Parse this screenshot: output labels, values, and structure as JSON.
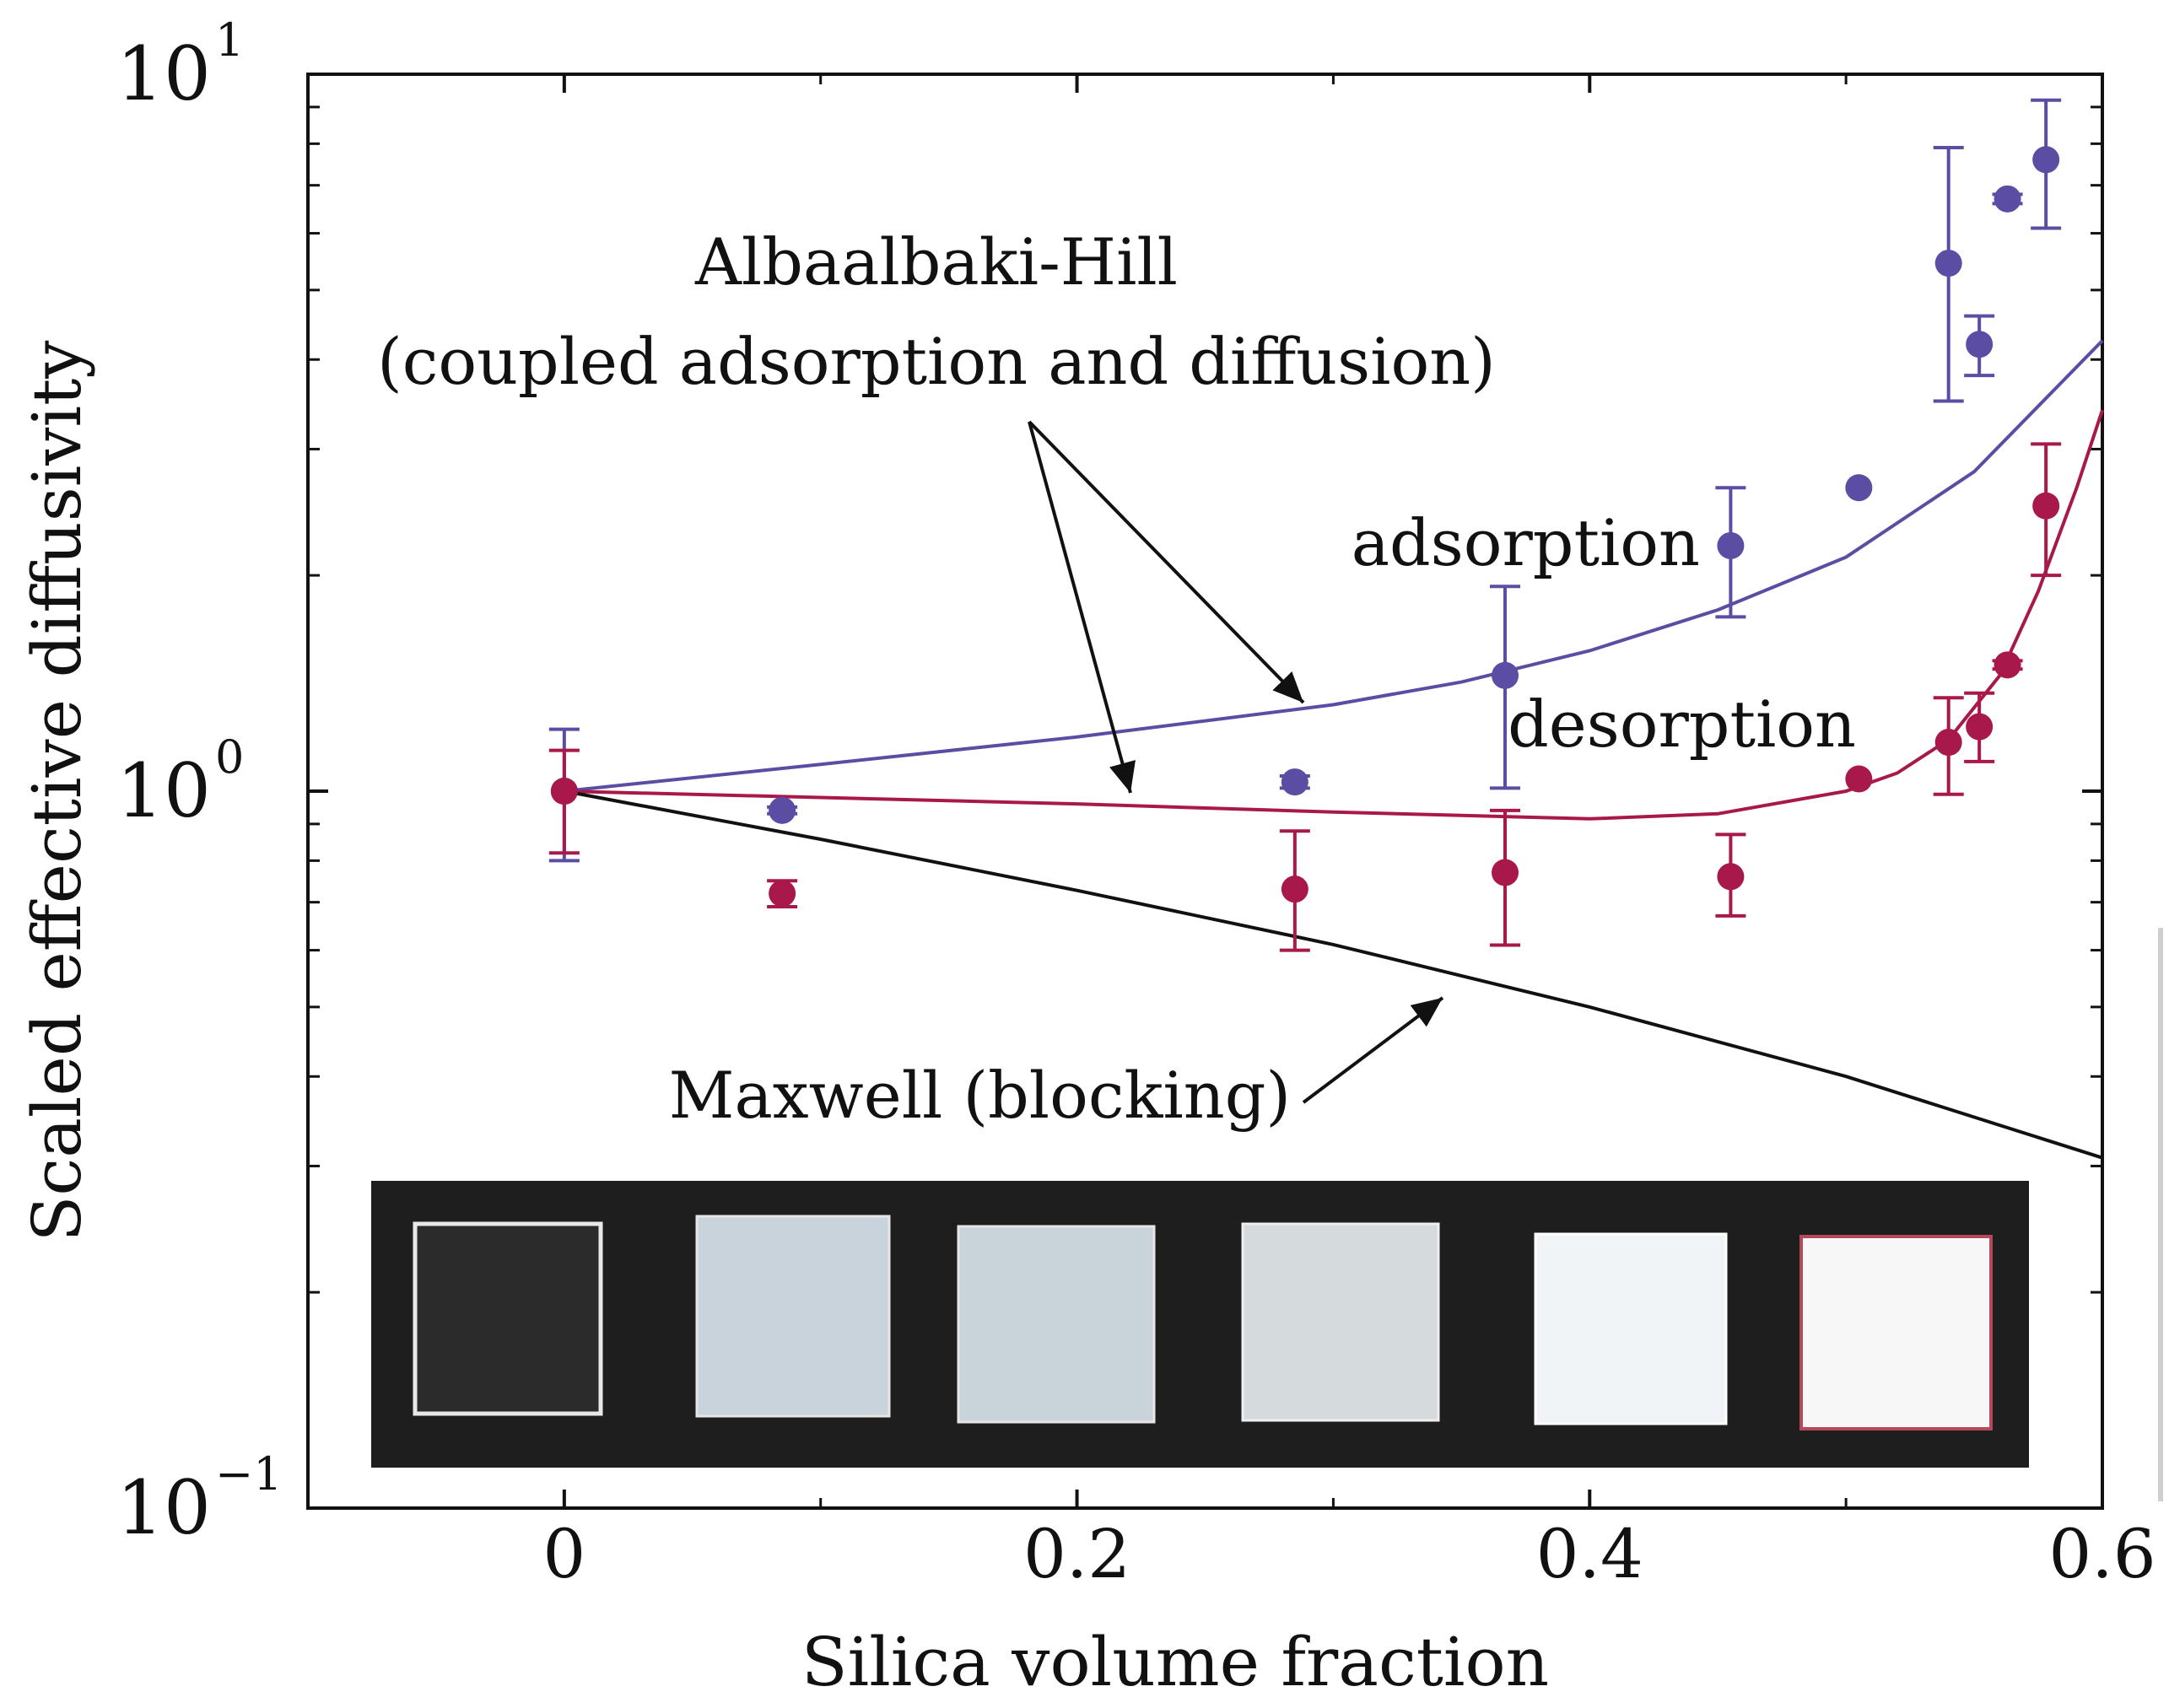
{
  "chart_data": {
    "type": "scatter",
    "ylabel": "Scaled effective diffusivity",
    "xlabel": "Silica volume fraction",
    "xlim": [
      -0.1,
      0.6
    ],
    "ylim": [
      0.1,
      10
    ],
    "yscale": "log",
    "x_ticks": [
      0,
      0.2,
      0.4,
      0.6
    ],
    "x_tick_labels": [
      "0",
      "0.2",
      "0.4",
      "0.6"
    ],
    "y_ticks": [
      {
        "value": 10,
        "base": "10",
        "exp": "1"
      },
      {
        "value": 1,
        "base": "10",
        "exp": "0"
      },
      {
        "value": 0.1,
        "base": "10",
        "exp": "−1"
      }
    ],
    "annotations": {
      "model_title": "Albaalbaki-Hill",
      "model_subtitle": "(coupled adsorption and diffusion)",
      "adsorption": "adsorption",
      "desorption": "desorption",
      "maxwell": "Maxwell (blocking)"
    },
    "colors": {
      "adsorption": "#5b4da4",
      "desorption": "#a8184a",
      "maxwell": "#111111"
    },
    "series": [
      {
        "key": "adsorption",
        "points": [
          {
            "x": 0.0,
            "y": 1.0,
            "lo": 0.8,
            "hi": 1.22
          },
          {
            "x": 0.085,
            "y": 0.94,
            "lo": 0.93,
            "hi": 0.95
          },
          {
            "x": 0.285,
            "y": 1.03,
            "lo": 1.01,
            "hi": 1.05
          },
          {
            "x": 0.367,
            "y": 1.45,
            "lo": 1.01,
            "hi": 1.93
          },
          {
            "x": 0.455,
            "y": 2.2,
            "lo": 1.75,
            "hi": 2.65
          },
          {
            "x": 0.505,
            "y": 2.65
          },
          {
            "x": 0.54,
            "y": 5.45,
            "lo": 3.5,
            "hi": 7.9
          },
          {
            "x": 0.552,
            "y": 4.2,
            "lo": 3.8,
            "hi": 4.6
          },
          {
            "x": 0.563,
            "y": 6.7,
            "lo": 6.6,
            "hi": 6.8
          },
          {
            "x": 0.578,
            "y": 7.6,
            "lo": 6.1,
            "hi": 9.2
          }
        ]
      },
      {
        "key": "desorption",
        "points": [
          {
            "x": 0.0,
            "y": 1.0,
            "lo": 0.82,
            "hi": 1.14
          },
          {
            "x": 0.085,
            "y": 0.72,
            "lo": 0.69,
            "hi": 0.75
          },
          {
            "x": 0.285,
            "y": 0.73,
            "lo": 0.6,
            "hi": 0.88
          },
          {
            "x": 0.367,
            "y": 0.77,
            "lo": 0.61,
            "hi": 0.94
          },
          {
            "x": 0.455,
            "y": 0.76,
            "lo": 0.67,
            "hi": 0.87
          },
          {
            "x": 0.505,
            "y": 1.04
          },
          {
            "x": 0.54,
            "y": 1.17,
            "lo": 0.99,
            "hi": 1.35
          },
          {
            "x": 0.552,
            "y": 1.23,
            "lo": 1.1,
            "hi": 1.37
          },
          {
            "x": 0.563,
            "y": 1.5,
            "lo": 1.48,
            "hi": 1.52
          },
          {
            "x": 0.578,
            "y": 2.5,
            "lo": 2.0,
            "hi": 3.05
          }
        ]
      }
    ],
    "curves": [
      {
        "key": "adsorption",
        "x": [
          0,
          0.1,
          0.2,
          0.3,
          0.35,
          0.4,
          0.45,
          0.5,
          0.55,
          0.6
        ],
        "y": [
          1.0,
          1.09,
          1.19,
          1.32,
          1.42,
          1.57,
          1.79,
          2.12,
          2.79,
          4.25
        ]
      },
      {
        "key": "desorption",
        "x": [
          0,
          0.1,
          0.2,
          0.3,
          0.35,
          0.4,
          0.45,
          0.5,
          0.52,
          0.54,
          0.56,
          0.575,
          0.59,
          0.6
        ],
        "y": [
          1.0,
          0.98,
          0.96,
          0.935,
          0.925,
          0.915,
          0.93,
          1.0,
          1.06,
          1.18,
          1.45,
          1.9,
          2.65,
          3.4
        ]
      },
      {
        "key": "maxwell",
        "x": [
          0,
          0.1,
          0.2,
          0.3,
          0.4,
          0.5,
          0.6
        ],
        "y": [
          1.0,
          0.857,
          0.727,
          0.611,
          0.5,
          0.4,
          0.308
        ]
      }
    ]
  }
}
